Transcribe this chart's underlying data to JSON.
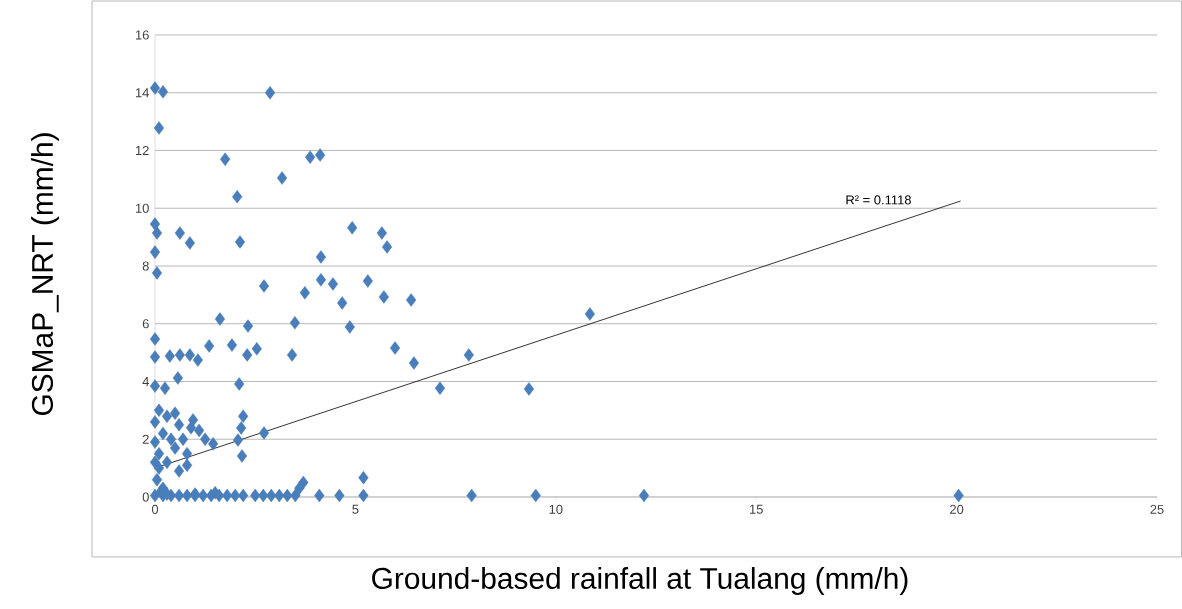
{
  "chart_data": {
    "type": "scatter",
    "xlabel": "Ground-based rainfall at Tualang (mm/h)",
    "ylabel": "GSMaP_NRT (mm/h)",
    "xlim": [
      0,
      25
    ],
    "xticks": [
      0,
      5,
      10,
      15,
      20,
      25
    ],
    "ylim": [
      0,
      16
    ],
    "yticks": [
      0,
      2,
      4,
      6,
      8,
      10,
      12,
      14,
      16
    ],
    "grid": "y",
    "series": [
      {
        "marker": "diamond",
        "color": "#4a7ebb",
        "x": [
          0,
          0.2,
          0.1,
          2.87,
          1.75,
          3.17,
          2.05,
          3.87,
          4.12,
          0,
          0.05,
          0,
          0.05,
          0.62,
          0.87,
          2.12,
          4.92,
          5.66,
          5.79,
          4.14,
          2.72,
          3.74,
          4.14,
          4.44,
          4.67,
          5.31,
          5.71,
          6.39,
          1.62,
          2.32,
          3.49,
          4.86,
          10.85,
          0,
          1.92,
          2.54,
          2.3,
          3.42,
          1.35,
          5.99,
          6.46,
          7.83,
          0,
          0.37,
          0.62,
          0.87,
          1.07,
          0.57,
          2.1,
          7.11,
          9.33,
          0,
          0.25,
          2.2,
          2.15,
          2.72,
          2.17,
          2.07,
          1.45,
          0.95,
          0.1,
          0.3,
          0.5,
          0.6,
          0.2,
          0.4,
          0.1,
          0.3,
          0.6,
          0.8,
          0.9,
          1.1,
          1.25,
          0.05,
          0.2,
          0.1,
          0,
          0,
          0,
          0.5,
          0.7,
          0.8,
          0,
          0.2,
          0.4,
          0.6,
          0.8,
          1.0,
          1.2,
          1.4,
          1.6,
          1.8,
          2.0,
          2.2,
          2.5,
          2.7,
          2.9,
          3.1,
          3.3,
          3.5,
          4.1,
          4.6,
          5.2,
          7.9,
          9.5,
          12.2,
          20.05,
          0.15,
          1.0,
          1.5,
          3.7,
          5.2,
          3.6,
          0.3
        ],
        "values": [
          14.16,
          14.03,
          12.78,
          14.0,
          11.7,
          11.05,
          10.4,
          11.77,
          11.84,
          9.45,
          9.14,
          8.48,
          7.76,
          9.14,
          8.8,
          8.83,
          9.32,
          9.14,
          8.66,
          8.31,
          7.31,
          7.07,
          7.52,
          7.38,
          6.72,
          7.48,
          6.93,
          6.82,
          6.16,
          5.92,
          6.03,
          5.89,
          6.34,
          5.47,
          5.26,
          5.13,
          4.92,
          4.92,
          5.23,
          5.16,
          4.64,
          4.92,
          4.85,
          4.88,
          4.92,
          4.92,
          4.74,
          4.12,
          3.91,
          3.77,
          3.74,
          3.84,
          3.77,
          2.8,
          2.39,
          2.22,
          1.42,
          1.97,
          1.84,
          2.67,
          3.0,
          2.8,
          2.9,
          2.5,
          2.2,
          2.0,
          1.5,
          1.2,
          0.9,
          1.5,
          2.4,
          2.3,
          2.0,
          0.6,
          0.3,
          1.0,
          2.6,
          1.9,
          1.2,
          1.7,
          2.0,
          1.1,
          0.05,
          0.05,
          0.05,
          0.05,
          0.05,
          0.05,
          0.05,
          0.05,
          0.05,
          0.05,
          0.05,
          0.05,
          0.05,
          0.05,
          0.05,
          0.05,
          0.05,
          0.05,
          0.05,
          0.05,
          0.05,
          0.05,
          0.05,
          0.05,
          0.05,
          0.2,
          0.1,
          0.15,
          0.5,
          0.67,
          0.3,
          0.1
        ]
      },
      {
        "type": "line",
        "color": "#000000",
        "x": [
          0,
          20.1
        ],
        "values": [
          1.0,
          10.25
        ]
      }
    ],
    "annotations": [
      "R² = 0.1118"
    ]
  }
}
